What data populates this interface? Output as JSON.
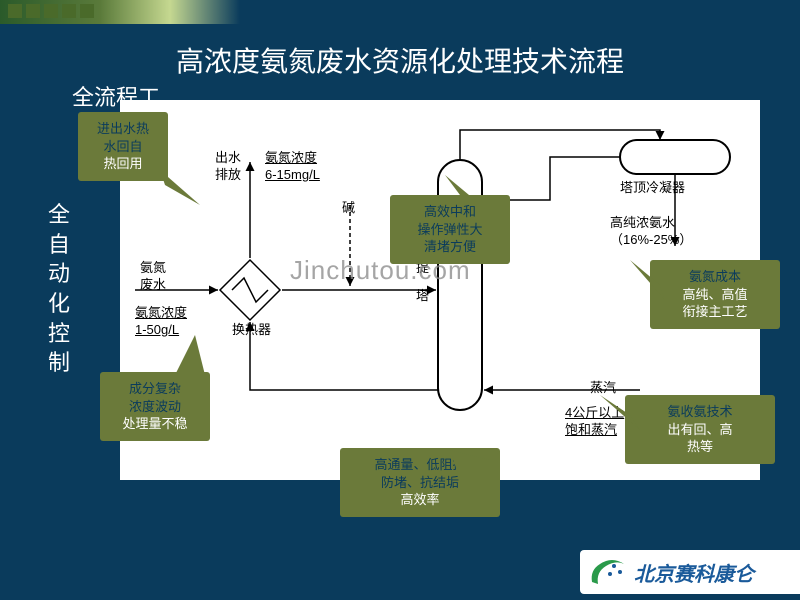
{
  "slide": {
    "bg_color": "#0a3b5c",
    "title": "高浓度氨氮废水资源化处理技术流程",
    "subtitle": "全流程工",
    "vertical_label": "全自动化控制",
    "title_color": "#ffffff",
    "title_fontsize": 28,
    "subtitle_fontsize": 22
  },
  "topbar": {
    "gradient": [
      "#2a5a2a",
      "#5a7a3a",
      "#c5d890",
      "#0a3b5c"
    ],
    "squares_x": [
      8,
      26,
      44,
      62,
      80
    ]
  },
  "diagram": {
    "bg": "#ffffff",
    "stroke": "#000000",
    "labels": {
      "discharge": "出水\n排放",
      "discharge_conc": "氨氮浓度\n6-15mg/L",
      "condenser": "塔顶冷凝器",
      "alkali": "碱",
      "influent": "氨氮\n废水",
      "influent_conc": "氨氮浓度\n1-50g/L",
      "hex": "换热器",
      "column": "汽提塔",
      "product": "高纯浓氨水\n（16%-25%）",
      "steam": "蒸汽",
      "steam_spec": "4公斤以上\n饱和蒸汽"
    }
  },
  "callouts": {
    "c1": {
      "dark": "进出水热\n水回自",
      "light": "热回用"
    },
    "c2": {
      "dark": "成分复杂\n浓度波动",
      "light": "处理量不稳"
    },
    "c3": {
      "dark": "高效中和\n操作弹性大\n清堵方便"
    },
    "c4": {
      "dark": "高通量、低阻抗\n防堵、抗结垢",
      "light": "高效率"
    },
    "c5": {
      "dark": "氨氮成本",
      "light": "高纯、高值\n衔接主工艺"
    },
    "c6": {
      "dark": "氨收氨技术",
      "light": "出有回、高\n热等"
    }
  },
  "watermark": "Jinchutou.com",
  "logo": {
    "text": "北京赛科康仑",
    "color": "#1a5a9a"
  }
}
